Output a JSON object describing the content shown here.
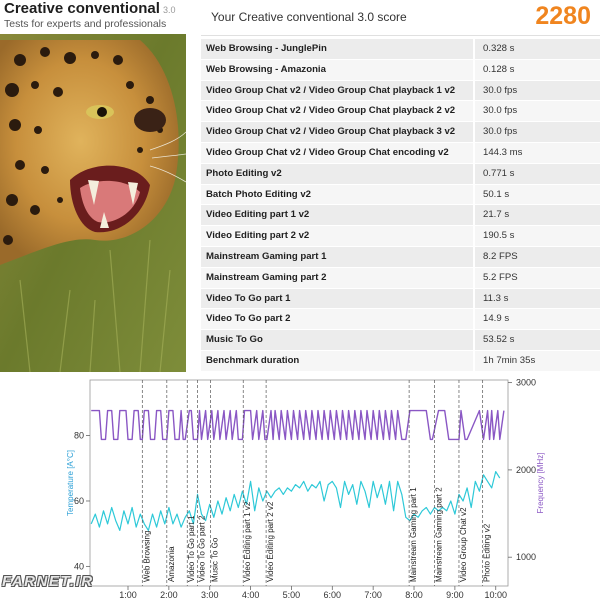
{
  "header": {
    "title": "Creative conventional",
    "version": "3.0",
    "subtitle": "Tests for experts and professionals",
    "score_label": "Your Creative conventional 3.0 score",
    "score": "2280"
  },
  "results": [
    {
      "name": "Web Browsing - JunglePin",
      "value": "0.328 s"
    },
    {
      "name": "Web Browsing - Amazonia",
      "value": "0.128 s"
    },
    {
      "name": "Video Group Chat v2 / Video Group Chat playback 1 v2",
      "value": "30.0 fps"
    },
    {
      "name": "Video Group Chat v2 / Video Group Chat playback 2 v2",
      "value": "30.0 fps"
    },
    {
      "name": "Video Group Chat v2 / Video Group Chat playback 3 v2",
      "value": "30.0 fps"
    },
    {
      "name": "Video Group Chat v2 / Video Group Chat encoding v2",
      "value": "144.3 ms"
    },
    {
      "name": "Photo Editing v2",
      "value": "0.771 s"
    },
    {
      "name": "Batch Photo Editing v2",
      "value": "50.1 s"
    },
    {
      "name": "Video Editing part 1 v2",
      "value": "21.7 s"
    },
    {
      "name": "Video Editing part 2 v2",
      "value": "190.5 s"
    },
    {
      "name": "Mainstream Gaming part 1",
      "value": "8.2 FPS"
    },
    {
      "name": "Mainstream Gaming part 2",
      "value": "5.2 FPS"
    },
    {
      "name": "Video To Go part 1",
      "value": "11.3 s"
    },
    {
      "name": "Video To Go part 2",
      "value": "14.9 s"
    },
    {
      "name": "Music To Go",
      "value": "53.52 s"
    },
    {
      "name": "Benchmark duration",
      "value": "1h 7min 35s"
    }
  ],
  "chart_data": {
    "type": "line",
    "xlabel": "",
    "ylabel": "Temperature [A°C]",
    "ylabel_right": "Frequency [MHz]",
    "x_ticks": [
      "1:00",
      "2:00",
      "3:00",
      "4:00",
      "5:00",
      "6:00",
      "7:00",
      "8:00",
      "9:00",
      "10:00"
    ],
    "y_ticks": [
      40,
      60,
      80
    ],
    "y_ticks_right": [
      1000,
      2000,
      3000
    ],
    "xlim": [
      0.07,
      10.3
    ],
    "ylim": [
      34,
      97
    ],
    "ylim_right": [
      670,
      3030
    ],
    "colors": {
      "temperature": "#2ec9d8",
      "temperature_dark": "#2a8fd6",
      "frequency": "#8a57c4",
      "markers": "#555555"
    },
    "markers": [
      {
        "t": 1.35,
        "label": "Web Browsing"
      },
      {
        "t": 1.95,
        "label": "Amazonia"
      },
      {
        "t": 2.45,
        "label": "Video To Go part 1"
      },
      {
        "t": 2.7,
        "label": "Video To Go part 2"
      },
      {
        "t": 3.02,
        "label": "Music To Go"
      },
      {
        "t": 3.82,
        "label": "Video Editing part 1 v2"
      },
      {
        "t": 4.38,
        "label": "Video Editing part 2 v2"
      },
      {
        "t": 7.88,
        "label": "Mainstream Gaming part 1"
      },
      {
        "t": 8.5,
        "label": "Mainstream Gaming part 2"
      },
      {
        "t": 9.1,
        "label": "Video Group Chat v2"
      },
      {
        "t": 9.68,
        "label": "Photo Editing v2"
      }
    ],
    "series": [
      {
        "name": "",
        "role": "temperature",
        "x": [
          0.1,
          0.2,
          0.3,
          0.4,
          0.5,
          0.6,
          0.7,
          0.8,
          0.9,
          1.0,
          1.1,
          1.2,
          1.3,
          1.4,
          1.5,
          1.6,
          1.7,
          1.8,
          1.9,
          2.0,
          2.1,
          2.2,
          2.3,
          2.4,
          2.5,
          2.6,
          2.7,
          2.8,
          2.9,
          3.0,
          3.1,
          3.2,
          3.3,
          3.4,
          3.5,
          3.6,
          3.7,
          3.8,
          3.9,
          4.0,
          4.1,
          4.2,
          4.3,
          4.4,
          4.5,
          4.6,
          4.7,
          4.8,
          4.9,
          5.0,
          5.1,
          5.2,
          5.3,
          5.4,
          5.5,
          5.6,
          5.7,
          5.8,
          5.9,
          6.0,
          6.1,
          6.2,
          6.3,
          6.4,
          6.5,
          6.6,
          6.7,
          6.8,
          6.9,
          7.0,
          7.1,
          7.2,
          7.3,
          7.4,
          7.5,
          7.6,
          7.7,
          7.8,
          7.9,
          8.0,
          8.1,
          8.2,
          8.3,
          8.4,
          8.5,
          8.6,
          8.7,
          8.8,
          8.9,
          9.0,
          9.1,
          9.2,
          9.3,
          9.4,
          9.5,
          9.6,
          9.7,
          9.8,
          9.9,
          10.0,
          10.1
        ],
        "values": [
          53,
          56,
          52,
          57,
          53,
          58,
          54,
          51,
          57,
          53,
          58,
          52,
          56,
          53,
          51,
          56,
          52,
          57,
          53,
          58,
          53,
          56,
          52,
          55,
          57,
          53,
          62,
          56,
          54,
          59,
          55,
          60,
          56,
          61,
          57,
          62,
          58,
          63,
          59,
          66,
          57,
          64,
          60,
          63,
          61,
          63,
          64,
          62,
          64,
          63,
          65,
          64,
          66,
          63,
          65,
          64,
          66,
          60,
          65,
          66,
          64,
          58,
          66,
          62,
          65,
          59,
          66,
          63,
          58,
          66,
          61,
          65,
          59,
          66,
          57,
          66,
          62,
          55,
          54,
          56,
          55,
          57,
          58,
          56,
          58,
          57,
          58,
          57,
          60,
          56,
          62,
          60,
          64,
          58,
          66,
          63,
          68,
          66,
          64,
          69,
          67
        ]
      },
      {
        "name": "",
        "role": "frequency",
        "x": [
          0.1,
          0.3,
          0.35,
          0.45,
          0.5,
          0.6,
          0.65,
          0.75,
          0.8,
          0.95,
          1.0,
          1.1,
          1.15,
          1.25,
          1.3,
          1.35,
          1.4,
          1.5,
          1.55,
          1.65,
          1.7,
          1.8,
          1.85,
          1.95,
          2.0,
          2.1,
          2.15,
          2.25,
          2.3,
          2.35,
          2.4,
          2.5,
          2.55,
          2.6,
          2.7,
          2.75,
          2.8,
          2.9,
          2.95,
          3.05,
          3.1,
          3.2,
          3.25,
          3.35,
          3.4,
          3.5,
          3.55,
          3.65,
          3.7,
          3.8,
          3.85,
          4.0,
          4.05,
          4.15,
          4.2,
          4.3,
          4.35,
          4.4,
          4.5,
          4.55,
          4.6,
          4.7,
          4.75,
          4.85,
          4.9,
          5.0,
          5.05,
          5.15,
          5.2,
          5.3,
          5.35,
          5.45,
          5.5,
          5.6,
          5.65,
          5.75,
          5.8,
          5.9,
          5.95,
          6.05,
          6.1,
          6.2,
          6.25,
          6.35,
          6.4,
          6.5,
          6.55,
          6.65,
          6.7,
          6.8,
          6.85,
          6.95,
          7.0,
          7.1,
          7.15,
          7.25,
          7.3,
          7.4,
          7.45,
          7.55,
          7.6,
          7.7,
          7.75,
          7.8,
          7.9,
          8.3,
          8.4,
          8.45,
          8.6,
          8.7,
          8.75,
          8.85,
          9.1,
          9.15,
          9.25,
          9.3,
          9.6,
          9.7,
          9.8,
          9.85,
          9.9,
          9.95,
          10.05,
          10.1,
          10.2
        ],
        "values": [
          2680,
          2680,
          2350,
          2350,
          2680,
          2680,
          2350,
          2350,
          2680,
          2680,
          2350,
          2350,
          2680,
          2680,
          2350,
          2350,
          2680,
          2680,
          2350,
          2350,
          2680,
          2680,
          2350,
          2350,
          2680,
          2680,
          2350,
          2350,
          2680,
          2350,
          2350,
          2680,
          2680,
          2350,
          2350,
          2680,
          2350,
          2680,
          2350,
          2680,
          2350,
          2680,
          2350,
          2680,
          2350,
          2680,
          2350,
          2680,
          2350,
          2350,
          2680,
          2680,
          2350,
          2680,
          2350,
          2680,
          2350,
          2350,
          2680,
          2350,
          2680,
          2350,
          2680,
          2350,
          2680,
          2350,
          2680,
          2350,
          2680,
          2350,
          2680,
          2350,
          2680,
          2350,
          2680,
          2350,
          2680,
          2350,
          2680,
          2350,
          2680,
          2350,
          2680,
          2350,
          2680,
          2350,
          2680,
          2350,
          2680,
          2350,
          2680,
          2350,
          2680,
          2350,
          2680,
          2350,
          2680,
          2350,
          2680,
          2350,
          2680,
          2350,
          2350,
          2350,
          2680,
          2680,
          2350,
          2350,
          2680,
          2680,
          2680,
          2350,
          2350,
          2680,
          2350,
          2350,
          2680,
          2350,
          2680,
          2350,
          2680,
          2350,
          2680,
          2350,
          2680
        ]
      }
    ]
  },
  "watermark": "FARNET.IR",
  "photo": {
    "icon": "leopard-photo"
  }
}
